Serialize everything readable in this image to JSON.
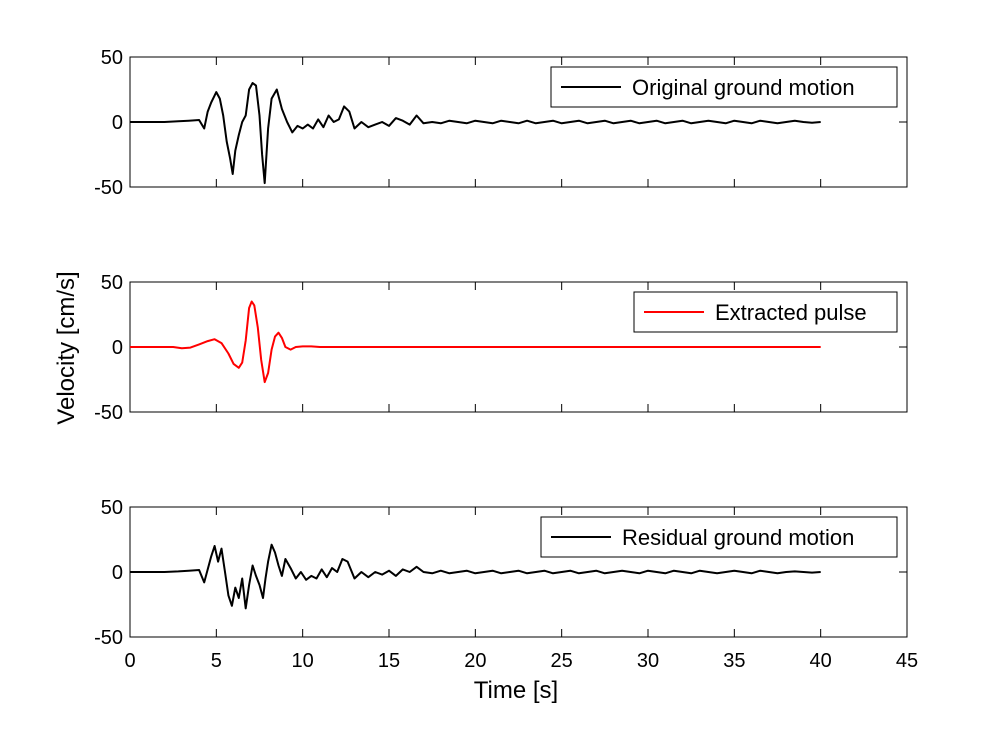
{
  "chart_data": [
    {
      "type": "line",
      "xlim": [
        0,
        45
      ],
      "ylim": [
        -50,
        50
      ],
      "xticks": [
        "0",
        "5",
        "10",
        "15",
        "20",
        "25",
        "30",
        "35",
        "40",
        "45"
      ],
      "yticks": [
        "50",
        "0",
        "-50"
      ],
      "xlabel": "",
      "ylabel": "",
      "legend_position": "top-right",
      "series": [
        {
          "name": "Original ground motion",
          "color": "#000000",
          "x": [
            0,
            2,
            2.8,
            3.4,
            4,
            4.3,
            4.5,
            4.7,
            5,
            5.2,
            5.4,
            5.6,
            5.8,
            5.95,
            6.1,
            6.3,
            6.5,
            6.7,
            6.9,
            7.1,
            7.3,
            7.5,
            7.65,
            7.8,
            8,
            8.2,
            8.5,
            8.8,
            9.1,
            9.4,
            9.7,
            10,
            10.3,
            10.6,
            10.9,
            11.2,
            11.5,
            11.8,
            12.1,
            12.4,
            12.7,
            13,
            13.4,
            13.8,
            14.2,
            14.6,
            15,
            15.4,
            15.8,
            16.2,
            16.6,
            17,
            17.5,
            18,
            18.5,
            19,
            19.5,
            20,
            20.5,
            21,
            21.5,
            22,
            22.5,
            23,
            23.5,
            24,
            24.5,
            25,
            25.5,
            26,
            26.5,
            27,
            27.5,
            28,
            28.5,
            29,
            29.5,
            30,
            30.5,
            31,
            31.5,
            32,
            32.5,
            33,
            33.5,
            34,
            34.5,
            35,
            35.5,
            36,
            36.5,
            37,
            37.5,
            38,
            38.5,
            39,
            39.5,
            40
          ],
          "y": [
            0,
            0,
            0.5,
            1,
            1.5,
            -5,
            8,
            15,
            23,
            18,
            5,
            -15,
            -28,
            -40,
            -22,
            -10,
            0,
            5,
            25,
            30,
            28,
            5,
            -25,
            -47,
            -5,
            18,
            25,
            10,
            0,
            -8,
            -3,
            -5,
            -2,
            -5,
            2,
            -4,
            5,
            0,
            2,
            12,
            8,
            -5,
            0,
            -4,
            -2,
            0,
            -3,
            3,
            1,
            -2,
            5,
            -1,
            0,
            -1,
            1,
            0,
            -1,
            1,
            0,
            -1,
            1,
            0,
            -1,
            1,
            -1,
            0,
            1,
            -1,
            0,
            1,
            -1,
            0,
            1,
            -1,
            0,
            1,
            -1,
            0,
            1,
            -1,
            0,
            1,
            -1,
            0,
            1,
            0,
            -1,
            1,
            0,
            -1,
            1,
            0,
            -1,
            0,
            1,
            0,
            -0.5,
            0
          ]
        }
      ]
    },
    {
      "type": "line",
      "xlim": [
        0,
        45
      ],
      "ylim": [
        -50,
        50
      ],
      "xticks": [
        "0",
        "5",
        "10",
        "15",
        "20",
        "25",
        "30",
        "35",
        "40",
        "45"
      ],
      "yticks": [
        "50",
        "0",
        "-50"
      ],
      "xlabel": "",
      "ylabel": "Velocity [cm/s]",
      "legend_position": "top-right",
      "series": [
        {
          "name": "Extracted pulse",
          "color": "#ff0000",
          "x": [
            0,
            2,
            2.5,
            3,
            3.5,
            4,
            4.5,
            4.9,
            5.3,
            5.7,
            6,
            6.3,
            6.5,
            6.7,
            6.9,
            7.05,
            7.2,
            7.4,
            7.6,
            7.8,
            8,
            8.2,
            8.4,
            8.6,
            8.8,
            9,
            9.3,
            9.6,
            10,
            10.5,
            11,
            12,
            40
          ],
          "y": [
            0,
            0,
            0,
            -1,
            -0.5,
            2,
            4.5,
            6,
            3,
            -5,
            -13,
            -16,
            -12,
            5,
            30,
            35,
            32,
            15,
            -10,
            -27,
            -20,
            -2,
            8,
            11,
            7,
            0,
            -2,
            0,
            0.5,
            0.5,
            0,
            0,
            0
          ]
        }
      ]
    },
    {
      "type": "line",
      "xlim": [
        0,
        45
      ],
      "ylim": [
        -50,
        50
      ],
      "xticks": [
        "0",
        "5",
        "10",
        "15",
        "20",
        "25",
        "30",
        "35",
        "40",
        "45"
      ],
      "yticks": [
        "50",
        "0",
        "-50"
      ],
      "xlabel": "Time [s]",
      "ylabel": "",
      "legend_position": "top-right",
      "series": [
        {
          "name": "Residual ground motion",
          "color": "#000000",
          "x": [
            0,
            2,
            2.8,
            3.4,
            4,
            4.3,
            4.5,
            4.7,
            4.9,
            5.1,
            5.3,
            5.5,
            5.7,
            5.9,
            6.1,
            6.3,
            6.5,
            6.7,
            6.9,
            7.1,
            7.3,
            7.5,
            7.7,
            7.85,
            8,
            8.2,
            8.4,
            8.6,
            8.8,
            9,
            9.3,
            9.6,
            9.9,
            10.2,
            10.5,
            10.8,
            11.1,
            11.4,
            11.7,
            12,
            12.3,
            12.6,
            13,
            13.4,
            13.8,
            14.2,
            14.6,
            15,
            15.4,
            15.8,
            16.2,
            16.6,
            17,
            17.5,
            18,
            18.5,
            19,
            19.5,
            20,
            20.5,
            21,
            21.5,
            22,
            22.5,
            23,
            23.5,
            24,
            24.5,
            25,
            25.5,
            26,
            26.5,
            27,
            27.5,
            28,
            28.5,
            29,
            29.5,
            30,
            30.5,
            31,
            31.5,
            32,
            32.5,
            33,
            33.5,
            34,
            34.5,
            35,
            35.5,
            36,
            36.5,
            37,
            37.5,
            38,
            38.5,
            39,
            39.5,
            40
          ],
          "y": [
            0,
            0,
            0.5,
            1,
            1.5,
            -8,
            2,
            12,
            20,
            8,
            18,
            0,
            -18,
            -26,
            -12,
            -20,
            -5,
            -28,
            -10,
            5,
            -3,
            -10,
            -20,
            -5,
            8,
            21,
            15,
            5,
            -3,
            10,
            3,
            -5,
            0,
            -6,
            -3,
            -5,
            2,
            -4,
            3,
            0,
            10,
            8,
            -5,
            0,
            -4,
            0,
            -2,
            1,
            -3,
            2,
            0,
            4,
            0,
            -1,
            1,
            -1,
            0,
            1,
            -1,
            0,
            1,
            -1,
            0,
            1,
            -1,
            0,
            1,
            -1,
            0,
            1,
            -1,
            0,
            1,
            -1,
            0,
            1,
            0,
            -1,
            1,
            0,
            -1,
            1,
            0,
            -1,
            1,
            0,
            -1,
            0,
            1,
            0,
            -1,
            1,
            0,
            -1,
            0,
            0.5,
            0,
            -0.5,
            0
          ]
        }
      ]
    }
  ]
}
